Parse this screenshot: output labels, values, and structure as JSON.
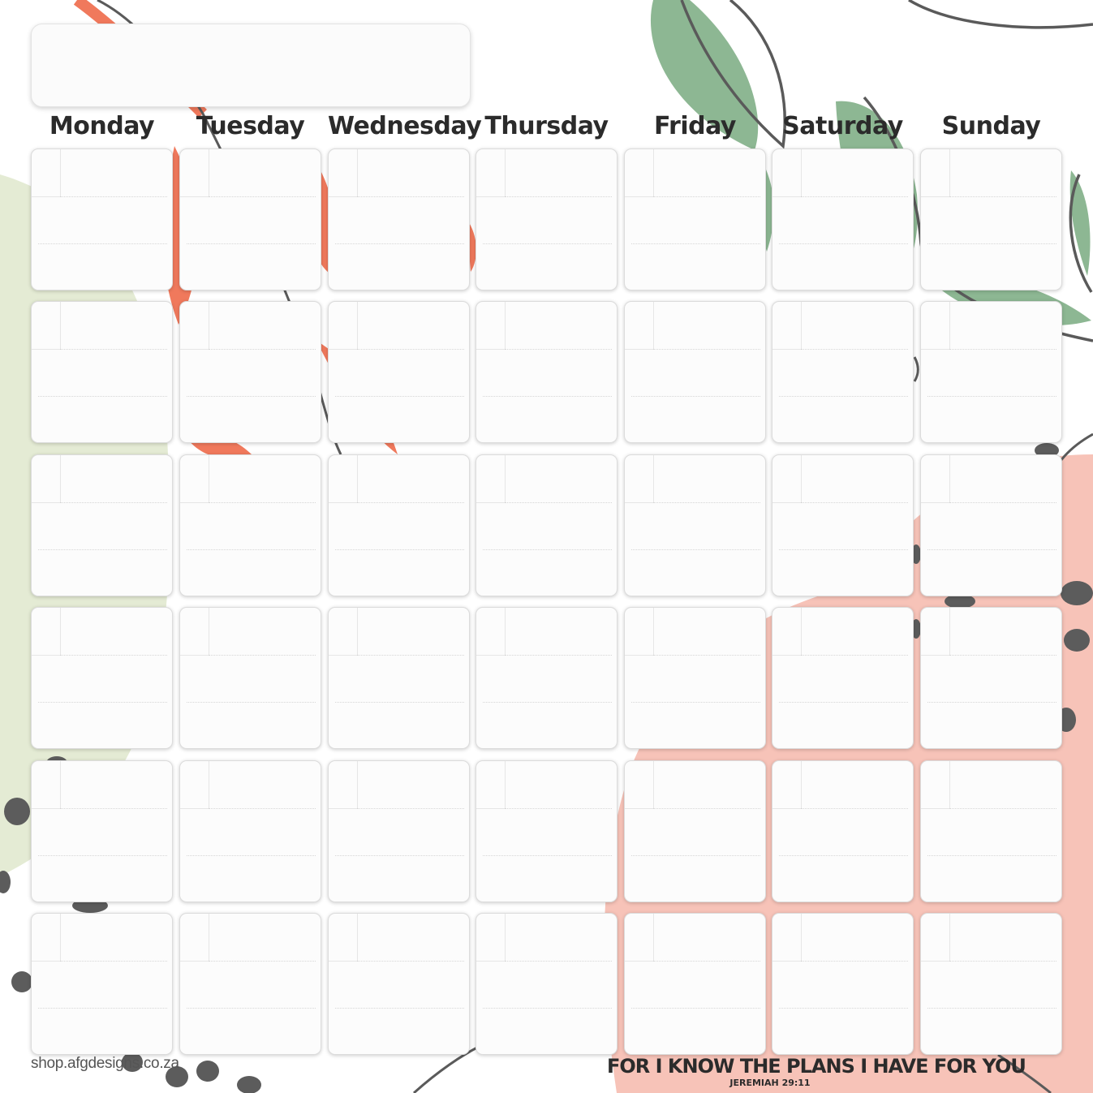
{
  "calendar": {
    "weekdays": [
      "Monday",
      "Tuesday",
      "Wednesday",
      "Thursday",
      "Friday",
      "Saturday",
      "Sunday"
    ],
    "rows": 6,
    "columns": 7
  },
  "footer": {
    "website": "shop.afgdesigns.co.za",
    "quote": "FOR I KNOW THE PLANS I HAVE FOR YOU",
    "reference": "JEREMIAH 29:11"
  },
  "colors": {
    "coral": "#f0795c",
    "sage_green": "#8db793",
    "light_green": "#dbe6c6",
    "pink_blush": "#f6b1a4",
    "dark_grey": "#5c5c5c"
  }
}
